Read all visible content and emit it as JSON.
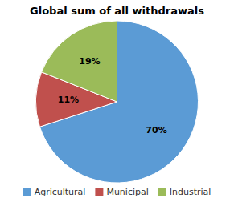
{
  "chart_data": {
    "type": "pie",
    "title": "Global sum of all withdrawals",
    "categories": [
      "Agricultural",
      "Municipal",
      "Industrial"
    ],
    "values": [
      70,
      11,
      19
    ],
    "value_labels": [
      "70%",
      "11%",
      "19%"
    ],
    "colors": [
      "#5B9BD5",
      "#C0504D",
      "#9BBB59"
    ],
    "data_labels": true,
    "legend": "bottom"
  }
}
